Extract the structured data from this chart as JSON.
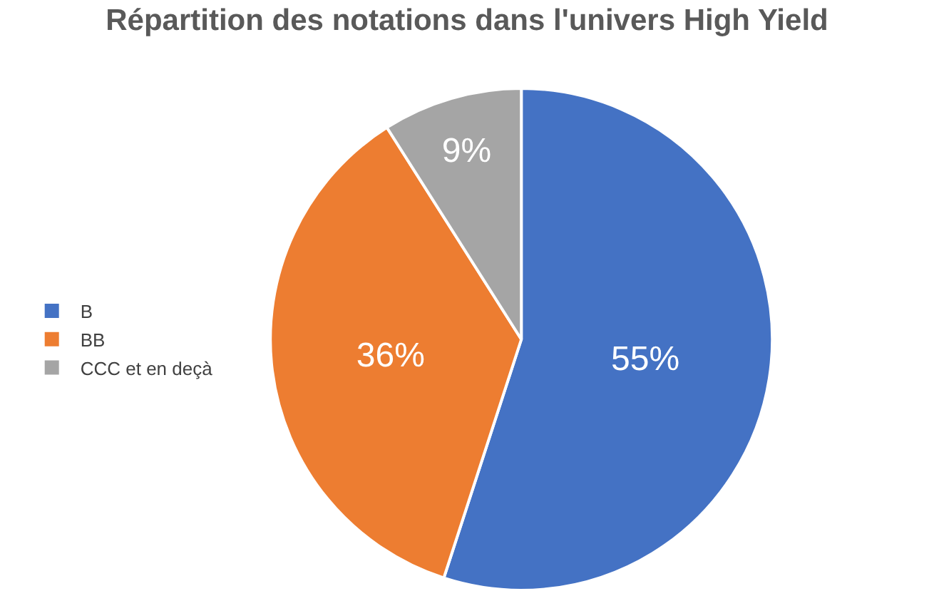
{
  "chart_data": {
    "type": "pie",
    "title": "Répartition des notations dans l'univers High Yield",
    "categories": [
      "B",
      "BB",
      "CCC et en deçà"
    ],
    "values": [
      55,
      36,
      9
    ],
    "colors": [
      "#4472c4",
      "#ed7d31",
      "#a5a5a5"
    ],
    "value_labels": [
      "55%",
      "36%",
      "9%"
    ],
    "legend": "left"
  }
}
